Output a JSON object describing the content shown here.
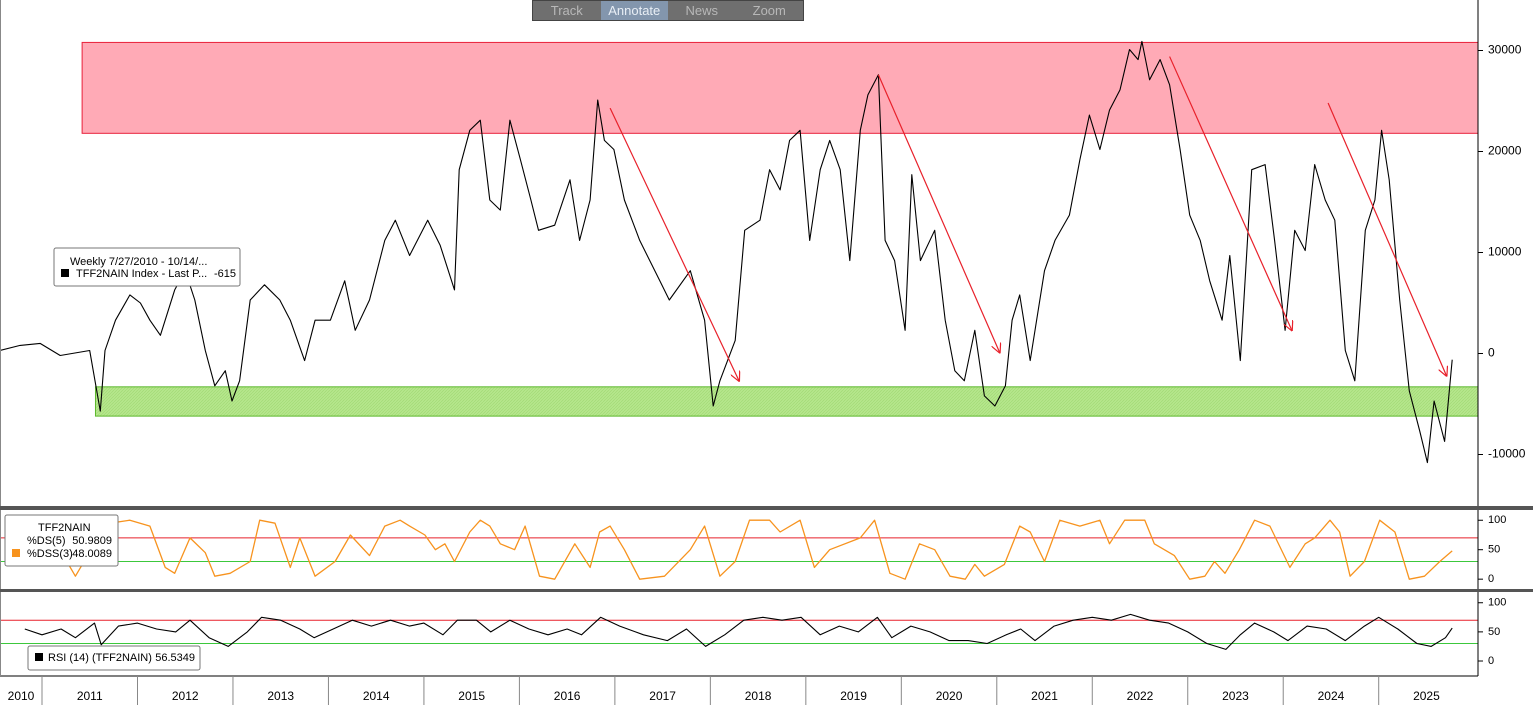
{
  "toolbar": [
    "Track",
    "Annotate",
    "News",
    "Zoom"
  ],
  "chart_data": [
    {
      "type": "line",
      "legend_title": "Weekly 7/27/2010 - 10/14/...",
      "xlim": [
        2010.56,
        2026.04
      ],
      "ylim": [
        -15000,
        35000
      ],
      "yticks": [
        -10000,
        0,
        10000,
        20000,
        30000
      ],
      "x": [
        2010.56,
        2010.77,
        2010.98,
        2011.19,
        2011.5,
        2011.61,
        2011.66,
        2011.77,
        2011.92,
        2012.03,
        2012.13,
        2012.24,
        2012.39,
        2012.5,
        2012.6,
        2012.71,
        2012.81,
        2012.92,
        2012.99,
        2013.07,
        2013.18,
        2013.33,
        2013.49,
        2013.6,
        2013.75,
        2013.86,
        2014.02,
        2014.17,
        2014.28,
        2014.43,
        2014.59,
        2014.7,
        2014.85,
        2015.04,
        2015.17,
        2015.32,
        2015.37,
        2015.48,
        2015.59,
        2015.69,
        2015.8,
        2015.9,
        2016.01,
        2016.12,
        2016.2,
        2016.37,
        2016.53,
        2016.63,
        2016.74,
        2016.82,
        2016.89,
        2016.99,
        2017.1,
        2017.26,
        2017.47,
        2017.57,
        2017.79,
        2017.94,
        2018.03,
        2018.1,
        2018.26,
        2018.36,
        2018.52,
        2018.62,
        2018.73,
        2018.83,
        2018.94,
        2019.04,
        2019.15,
        2019.25,
        2019.36,
        2019.46,
        2019.57,
        2019.65,
        2019.76,
        2019.83,
        2019.93,
        2020.04,
        2020.11,
        2020.2,
        2020.35,
        2020.46,
        2020.56,
        2020.66,
        2020.77,
        2020.87,
        2020.98,
        2021.09,
        2021.16,
        2021.24,
        2021.35,
        2021.5,
        2021.61,
        2021.76,
        2021.87,
        2021.97,
        2022.08,
        2022.18,
        2022.29,
        2022.39,
        2022.48,
        2022.52,
        2022.6,
        2022.71,
        2022.81,
        2022.92,
        2023.02,
        2023.13,
        2023.23,
        2023.36,
        2023.44,
        2023.55,
        2023.67,
        2023.81,
        2023.91,
        2024.02,
        2024.12,
        2024.23,
        2024.33,
        2024.44,
        2024.54,
        2024.65,
        2024.75,
        2024.86,
        2024.96,
        2025.03,
        2025.11,
        2025.22,
        2025.32,
        2025.43,
        2025.51,
        2025.58,
        2025.69,
        2025.77
      ],
      "series": [
        {
          "name": "TFF2NAIN Index - Last P...",
          "color": "#000000",
          "values": [
            300,
            800,
            1000,
            -200,
            300,
            -5700,
            300,
            3300,
            5800,
            5000,
            3300,
            1800,
            6300,
            8200,
            5300,
            300,
            -3200,
            -1700,
            -4700,
            -2700,
            5300,
            6800,
            5300,
            3300,
            -700,
            3300,
            3300,
            7200,
            2300,
            5300,
            11200,
            13200,
            9700,
            13200,
            10700,
            6300,
            18200,
            22100,
            23100,
            15200,
            14200,
            23100,
            19200,
            15200,
            12200,
            12700,
            17200,
            11200,
            15200,
            25100,
            21100,
            20200,
            15200,
            11200,
            7200,
            5300,
            8200,
            3300,
            -5200,
            -2700,
            1300,
            12200,
            13200,
            18200,
            16200,
            21100,
            22100,
            11200,
            18200,
            21100,
            18200,
            9200,
            22100,
            25600,
            27600,
            11200,
            9200,
            2300,
            17700,
            9200,
            12200,
            3300,
            -1700,
            -2700,
            2300,
            -4200,
            -5200,
            -3200,
            3300,
            5800,
            -700,
            8200,
            11200,
            13700,
            19200,
            23600,
            20200,
            24100,
            26100,
            30100,
            29100,
            30900,
            27100,
            29100,
            26600,
            20200,
            13700,
            11200,
            7200,
            3300,
            9700,
            -700,
            18200,
            18700,
            11200,
            2300,
            12200,
            10200,
            18700,
            15200,
            13200,
            300,
            -2700,
            12200,
            15200,
            22100,
            17200,
            5300,
            -3700,
            -7700,
            -10800,
            -4700,
            -8700,
            -615
          ]
        }
      ],
      "zones": [
        {
          "x": [
            2011.42,
            2026.04
          ],
          "y": [
            21800,
            30800
          ],
          "color": "#ffaab6",
          "edge": "#e8213b"
        },
        {
          "x": [
            2011.56,
            2026.04
          ],
          "y": [
            -6200,
            -3300
          ],
          "color": "#b5e68c",
          "edge": "#5cb82c"
        }
      ],
      "arrows": [
        {
          "x": [
            2016.95,
            2018.3
          ],
          "y": [
            24300,
            -2700
          ],
          "color": "#e8212b"
        },
        {
          "x": [
            2019.76,
            2021.03
          ],
          "y": [
            27600,
            100
          ],
          "color": "#e8212b"
        },
        {
          "x": [
            2022.81,
            2024.09
          ],
          "y": [
            29400,
            2300
          ],
          "color": "#e8212b"
        },
        {
          "x": [
            2024.47,
            2025.71
          ],
          "y": [
            24800,
            -2200
          ],
          "color": "#e8212b"
        }
      ]
    },
    {
      "type": "line",
      "legend_title": "TFF2NAIN",
      "legend_items": [
        {
          "name": "%DS(5)",
          "value": 50.9809
        }
      ],
      "xlim": [
        2010.56,
        2026.04
      ],
      "ylim": [
        -15,
        114
      ],
      "yticks": [
        0,
        50,
        100
      ],
      "levels": [
        {
          "value": 70,
          "color": "#e8212b"
        },
        {
          "value": 30,
          "color": "#3cc83c"
        }
      ],
      "x": [
        2010.87,
        2011.08,
        2011.35,
        2011.55,
        2011.71,
        2011.92,
        2012.13,
        2012.29,
        2012.39,
        2012.55,
        2012.71,
        2012.81,
        2012.97,
        2013.18,
        2013.28,
        2013.44,
        2013.6,
        2013.7,
        2013.86,
        2014.07,
        2014.23,
        2014.43,
        2014.59,
        2014.75,
        2014.85,
        2015.01,
        2015.12,
        2015.22,
        2015.32,
        2015.48,
        2015.59,
        2015.69,
        2015.8,
        2015.95,
        2016.06,
        2016.21,
        2016.37,
        2016.58,
        2016.74,
        2016.84,
        2016.95,
        2017.1,
        2017.26,
        2017.52,
        2017.79,
        2017.94,
        2018.1,
        2018.26,
        2018.41,
        2018.62,
        2018.73,
        2018.94,
        2019.09,
        2019.25,
        2019.57,
        2019.72,
        2019.88,
        2020.04,
        2020.19,
        2020.35,
        2020.51,
        2020.67,
        2020.77,
        2020.87,
        2021.08,
        2021.24,
        2021.35,
        2021.5,
        2021.66,
        2021.87,
        2022.08,
        2022.18,
        2022.34,
        2022.55,
        2022.65,
        2022.86,
        2023.02,
        2023.18,
        2023.28,
        2023.39,
        2023.54,
        2023.7,
        2023.86,
        2024.07,
        2024.23,
        2024.33,
        2024.49,
        2024.59,
        2024.7,
        2024.85,
        2025.01,
        2025.17,
        2025.32,
        2025.48,
        2025.64,
        2025.77
      ],
      "series": [
        {
          "name": "%DSS(3)",
          "color": "#f7931e",
          "values": [
            50,
            80,
            5,
            60,
            95,
            100,
            90,
            20,
            10,
            70,
            45,
            5,
            10,
            30,
            100,
            95,
            20,
            70,
            5,
            30,
            75,
            40,
            90,
            100,
            90,
            75,
            50,
            60,
            30,
            80,
            100,
            90,
            60,
            50,
            90,
            5,
            0,
            60,
            20,
            80,
            90,
            50,
            0,
            5,
            50,
            90,
            5,
            30,
            100,
            100,
            80,
            100,
            20,
            50,
            70,
            100,
            10,
            0,
            60,
            50,
            5,
            0,
            25,
            5,
            25,
            90,
            80,
            30,
            100,
            90,
            100,
            60,
            100,
            100,
            60,
            40,
            0,
            5,
            30,
            10,
            50,
            100,
            90,
            20,
            60,
            70,
            100,
            80,
            5,
            30,
            100,
            80,
            0,
            5,
            30,
            48.0089
          ]
        }
      ]
    },
    {
      "type": "line",
      "xlim": [
        2010.56,
        2026.04
      ],
      "ylim": [
        -24,
        115
      ],
      "yticks": [
        0,
        50,
        100
      ],
      "xticks": [
        2010,
        2011,
        2012,
        2013,
        2014,
        2015,
        2016,
        2017,
        2018,
        2019,
        2020,
        2021,
        2022,
        2023,
        2024,
        2025
      ],
      "levels": [
        {
          "value": 70,
          "color": "#e8212b"
        },
        {
          "value": 30,
          "color": "#3cc83c"
        }
      ],
      "x": [
        2010.82,
        2011.0,
        2011.2,
        2011.35,
        2011.55,
        2011.62,
        2011.8,
        2012.0,
        2012.2,
        2012.4,
        2012.55,
        2012.75,
        2012.95,
        2013.15,
        2013.3,
        2013.5,
        2013.7,
        2013.85,
        2014.05,
        2014.25,
        2014.45,
        2014.65,
        2014.85,
        2015.0,
        2015.2,
        2015.35,
        2015.55,
        2015.7,
        2015.9,
        2016.1,
        2016.3,
        2016.5,
        2016.65,
        2016.85,
        2017.05,
        2017.3,
        2017.55,
        2017.75,
        2017.95,
        2018.15,
        2018.35,
        2018.55,
        2018.75,
        2018.95,
        2019.15,
        2019.35,
        2019.55,
        2019.75,
        2019.9,
        2020.1,
        2020.3,
        2020.5,
        2020.7,
        2020.9,
        2021.1,
        2021.25,
        2021.4,
        2021.6,
        2021.8,
        2022.0,
        2022.2,
        2022.4,
        2022.6,
        2022.8,
        2023.0,
        2023.2,
        2023.4,
        2023.55,
        2023.7,
        2023.9,
        2024.05,
        2024.25,
        2024.45,
        2024.65,
        2024.85,
        2025.0,
        2025.2,
        2025.4,
        2025.55,
        2025.7,
        2025.77
      ],
      "series": [
        {
          "name": "RSI (14) (TFF2NAIN)",
          "color": "#000000",
          "values": [
            55,
            45,
            55,
            40,
            65,
            28,
            60,
            65,
            55,
            50,
            70,
            40,
            25,
            50,
            75,
            70,
            55,
            40,
            55,
            70,
            60,
            70,
            60,
            65,
            45,
            70,
            70,
            50,
            70,
            55,
            45,
            55,
            45,
            75,
            60,
            45,
            35,
            55,
            25,
            45,
            70,
            75,
            70,
            75,
            45,
            60,
            50,
            75,
            40,
            60,
            50,
            35,
            35,
            30,
            45,
            55,
            35,
            60,
            70,
            75,
            70,
            80,
            70,
            65,
            50,
            30,
            20,
            45,
            65,
            50,
            35,
            60,
            55,
            35,
            60,
            75,
            55,
            30,
            25,
            40,
            56.5349
          ]
        }
      ]
    }
  ]
}
